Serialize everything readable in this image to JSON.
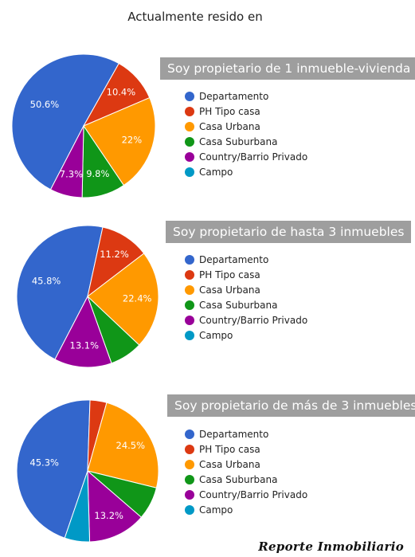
{
  "page_title": "Actualmente resido en",
  "watermark": "Reporte Inmobiliario",
  "colors": {
    "Departamento": "#3366cc",
    "PH Tipo casa": "#dc3912",
    "Casa Urbana": "#ff9900",
    "Casa Suburbana": "#109618",
    "Country/Barrio Privado": "#990099",
    "Campo": "#0099c6"
  },
  "chart_data": [
    {
      "type": "pie",
      "title": "Soy propietario de 1 inmueble-vivienda",
      "legend_position": "right",
      "categories": [
        "Departamento",
        "PH Tipo casa",
        "Casa Urbana",
        "Casa Suburbana",
        "Country/Barrio Privado",
        "Campo"
      ],
      "values": [
        50.6,
        10.4,
        22.0,
        9.8,
        7.3,
        0.0
      ],
      "data_labels": [
        "50.6%",
        "10.4%",
        "22%",
        "9.8%",
        "7.3%",
        ""
      ]
    },
    {
      "type": "pie",
      "title": "Soy propietario de hasta 3 inmuebles",
      "legend_position": "right",
      "categories": [
        "Departamento",
        "PH Tipo casa",
        "Casa Urbana",
        "Casa Suburbana",
        "Country/Barrio Privado",
        "Campo"
      ],
      "values": [
        45.8,
        11.2,
        22.4,
        7.5,
        13.1,
        0.0
      ],
      "data_labels": [
        "45.8%",
        "11.2%",
        "22.4%",
        "",
        "13.1%",
        ""
      ]
    },
    {
      "type": "pie",
      "title": "Soy propietario de más de 3 inmuebles",
      "legend_position": "right",
      "categories": [
        "Departamento",
        "PH Tipo casa",
        "Casa Urbana",
        "Casa Suburbana",
        "Country/Barrio Privado",
        "Campo"
      ],
      "values": [
        45.3,
        3.8,
        24.5,
        7.5,
        13.2,
        5.7
      ],
      "data_labels": [
        "45.3%",
        "",
        "24.5%",
        "",
        "13.2%",
        ""
      ]
    }
  ]
}
